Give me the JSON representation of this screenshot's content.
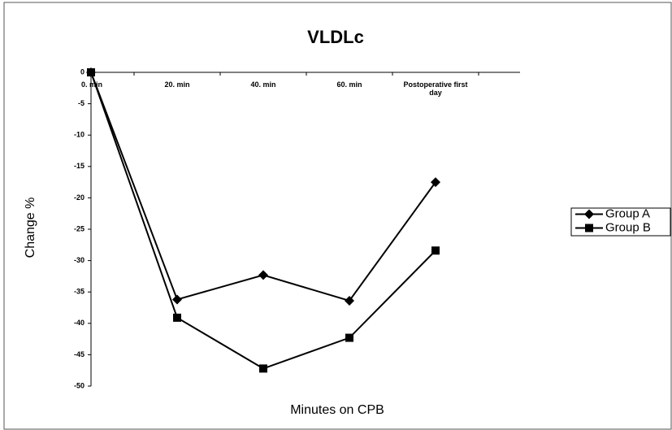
{
  "chart_data": {
    "type": "line",
    "title": "VLDLc",
    "x_label": "Minutes on CPB",
    "y_label": "Change %",
    "categories": [
      "0. min",
      "20. min",
      "40. min",
      "60. min",
      "Postoperative first day"
    ],
    "series": [
      {
        "name": "Group A",
        "color": "#000000",
        "marker": "diamond",
        "values": [
          0,
          -36.2,
          -32.3,
          -36.4,
          -17.5
        ]
      },
      {
        "name": "Group B",
        "color": "#000000",
        "marker": "square",
        "values": [
          0,
          -39.1,
          -47.2,
          -42.3,
          -28.4
        ]
      }
    ],
    "ylim": [
      -50,
      0
    ],
    "yticks": [
      0,
      -5,
      -10,
      -15,
      -20,
      -25,
      -30,
      -35,
      -40,
      -45,
      -50
    ],
    "grid": false,
    "legend": "right"
  }
}
